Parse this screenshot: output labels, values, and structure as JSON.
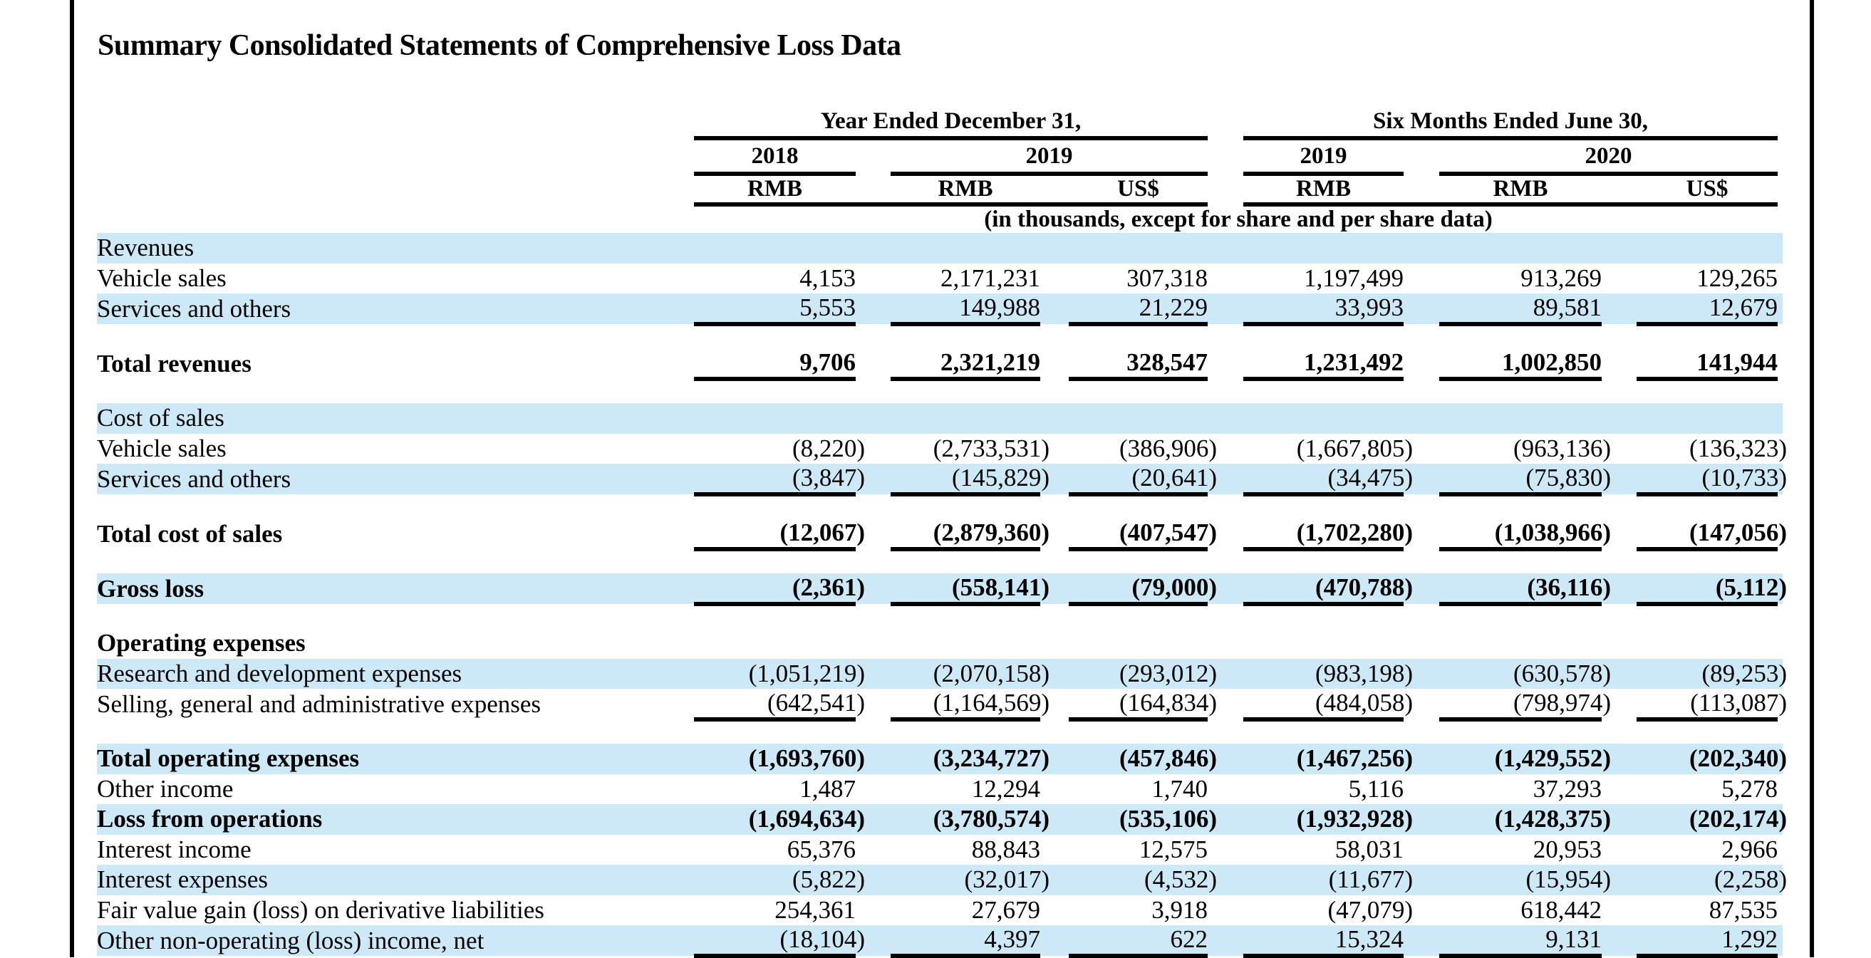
{
  "page": {
    "title": "Summary Consolidated Statements of Comprehensive Loss Data"
  },
  "colors": {
    "row_shade": "#cde9f8",
    "rule": "#000000"
  },
  "table": {
    "groups": [
      {
        "label": "Year Ended December 31,",
        "years": [
          {
            "label": "2018"
          },
          {
            "label": "2019"
          }
        ]
      },
      {
        "label": "Six Months Ended June 30,",
        "years": [
          {
            "label": "2019"
          },
          {
            "label": "2020"
          }
        ]
      }
    ],
    "currency_row": [
      "RMB",
      "RMB",
      "US$",
      "RMB",
      "RMB",
      "US$"
    ],
    "units_note": "(in thousands, except for share and per share data)",
    "rows": [
      {
        "label": "Revenues",
        "shade": true,
        "values": [
          "",
          "",
          "",
          "",
          "",
          ""
        ]
      },
      {
        "label": "Vehicle sales",
        "indent": true,
        "values": [
          "4,153",
          "2,171,231",
          "307,318",
          "1,197,499",
          "913,269",
          "129,265"
        ]
      },
      {
        "label": "Services and others",
        "indent": true,
        "shade": true,
        "underline": true,
        "values": [
          "5,553",
          "149,988",
          "21,229",
          "33,993",
          "89,581",
          "12,679"
        ]
      },
      {
        "spacer": true
      },
      {
        "label": "Total revenues",
        "bold": true,
        "underline": true,
        "values": [
          "9,706",
          "2,321,219",
          "328,547",
          "1,231,492",
          "1,002,850",
          "141,944"
        ]
      },
      {
        "spacer": true
      },
      {
        "label": "Cost of sales",
        "shade": true,
        "values": [
          "",
          "",
          "",
          "",
          "",
          ""
        ]
      },
      {
        "label": "Vehicle sales",
        "indent": true,
        "values": [
          "(8,220)",
          "(2,733,531)",
          "(386,906)",
          "(1,667,805)",
          "(963,136)",
          "(136,323)"
        ]
      },
      {
        "label": "Services and others",
        "indent": true,
        "shade": true,
        "underline": true,
        "values": [
          "(3,847)",
          "(145,829)",
          "(20,641)",
          "(34,475)",
          "(75,830)",
          "(10,733)"
        ]
      },
      {
        "spacer": true
      },
      {
        "label": "Total cost of sales",
        "bold": true,
        "underline": true,
        "values": [
          "(12,067)",
          "(2,879,360)",
          "(407,547)",
          "(1,702,280)",
          "(1,038,966)",
          "(147,056)"
        ]
      },
      {
        "spacer": true
      },
      {
        "label": "Gross loss",
        "bold": true,
        "shade": true,
        "underline": true,
        "values": [
          "(2,361)",
          "(558,141)",
          "(79,000)",
          "(470,788)",
          "(36,116)",
          "(5,112)"
        ]
      },
      {
        "spacer": true
      },
      {
        "label": "Operating expenses",
        "bold": true,
        "values": [
          "",
          "",
          "",
          "",
          "",
          ""
        ]
      },
      {
        "label": "Research and development expenses",
        "indent": true,
        "shade": true,
        "values": [
          "(1,051,219)",
          "(2,070,158)",
          "(293,012)",
          "(983,198)",
          "(630,578)",
          "(89,253)"
        ]
      },
      {
        "label": "Selling, general and administrative expenses",
        "indent": true,
        "underline": true,
        "values": [
          "(642,541)",
          "(1,164,569)",
          "(164,834)",
          "(484,058)",
          "(798,974)",
          "(113,087)"
        ]
      },
      {
        "spacer": true
      },
      {
        "label": "Total operating expenses",
        "bold": true,
        "shade": true,
        "values": [
          "(1,693,760)",
          "(3,234,727)",
          "(457,846)",
          "(1,467,256)",
          "(1,429,552)",
          "(202,340)"
        ]
      },
      {
        "label": "Other income",
        "values": [
          "1,487",
          "12,294",
          "1,740",
          "5,116",
          "37,293",
          "5,278"
        ]
      },
      {
        "label": "Loss from operations",
        "bold": true,
        "shade": true,
        "values": [
          "(1,694,634)",
          "(3,780,574)",
          "(535,106)",
          "(1,932,928)",
          "(1,428,375)",
          "(202,174)"
        ]
      },
      {
        "label": "Interest income",
        "indent": true,
        "values": [
          "65,376",
          "88,843",
          "12,575",
          "58,031",
          "20,953",
          "2,966"
        ]
      },
      {
        "label": "Interest expenses",
        "indent": true,
        "shade": true,
        "values": [
          "(5,822)",
          "(32,017)",
          "(4,532)",
          "(11,677)",
          "(15,954)",
          "(2,258)"
        ]
      },
      {
        "label": "Fair value gain (loss) on derivative liabilities",
        "indent": true,
        "values": [
          "254,361",
          "27,679",
          "3,918",
          "(47,079)",
          "618,442",
          "87,535"
        ]
      },
      {
        "label": "Other non-operating (loss) income, net",
        "indent": true,
        "shade": true,
        "underline": true,
        "values": [
          "(18,104)",
          "4,397",
          "622",
          "15,324",
          "9,131",
          "1,292"
        ]
      }
    ]
  }
}
